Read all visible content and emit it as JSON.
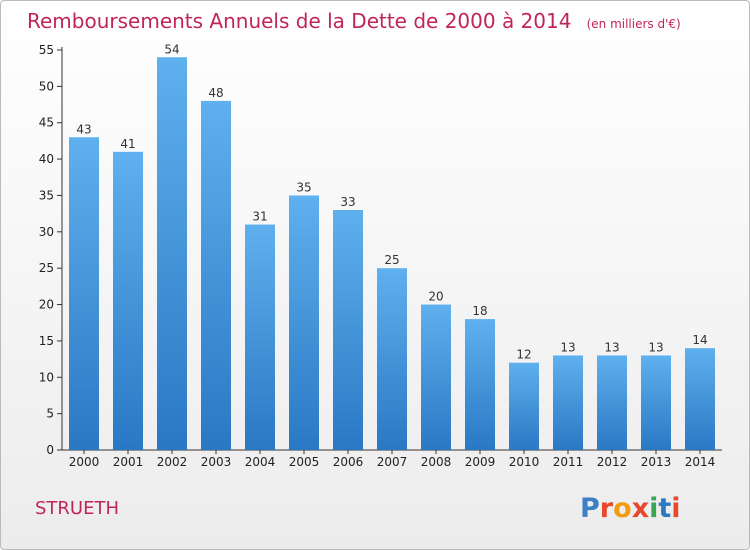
{
  "title": "Remboursements Annuels de la Dette de 2000 à 2014",
  "subtitle": "(en milliers d'€)",
  "location": "STRUETH",
  "logo": {
    "letters": [
      "P",
      "r",
      "o",
      "x",
      "i",
      "t",
      "i"
    ],
    "colors": [
      "#3b7fc4",
      "#e8482b",
      "#f39c12",
      "#e8482b",
      "#3aa655",
      "#2b79c2",
      "#e8482b"
    ]
  },
  "colors": {
    "title": "#c0245c",
    "bar_top": "#5fb0ee",
    "bar_bottom": "#2a78c4"
  },
  "chart_data": {
    "type": "bar",
    "categories": [
      "2000",
      "2001",
      "2002",
      "2003",
      "2004",
      "2005",
      "2006",
      "2007",
      "2008",
      "2009",
      "2010",
      "2011",
      "2012",
      "2013",
      "2014"
    ],
    "values": [
      43,
      41,
      54,
      48,
      31,
      35,
      33,
      25,
      20,
      18,
      12,
      13,
      13,
      13,
      14
    ],
    "ylim": [
      0,
      55
    ],
    "yticks": [
      0,
      5,
      10,
      15,
      20,
      25,
      30,
      35,
      40,
      45,
      50,
      55
    ],
    "grid": false
  }
}
